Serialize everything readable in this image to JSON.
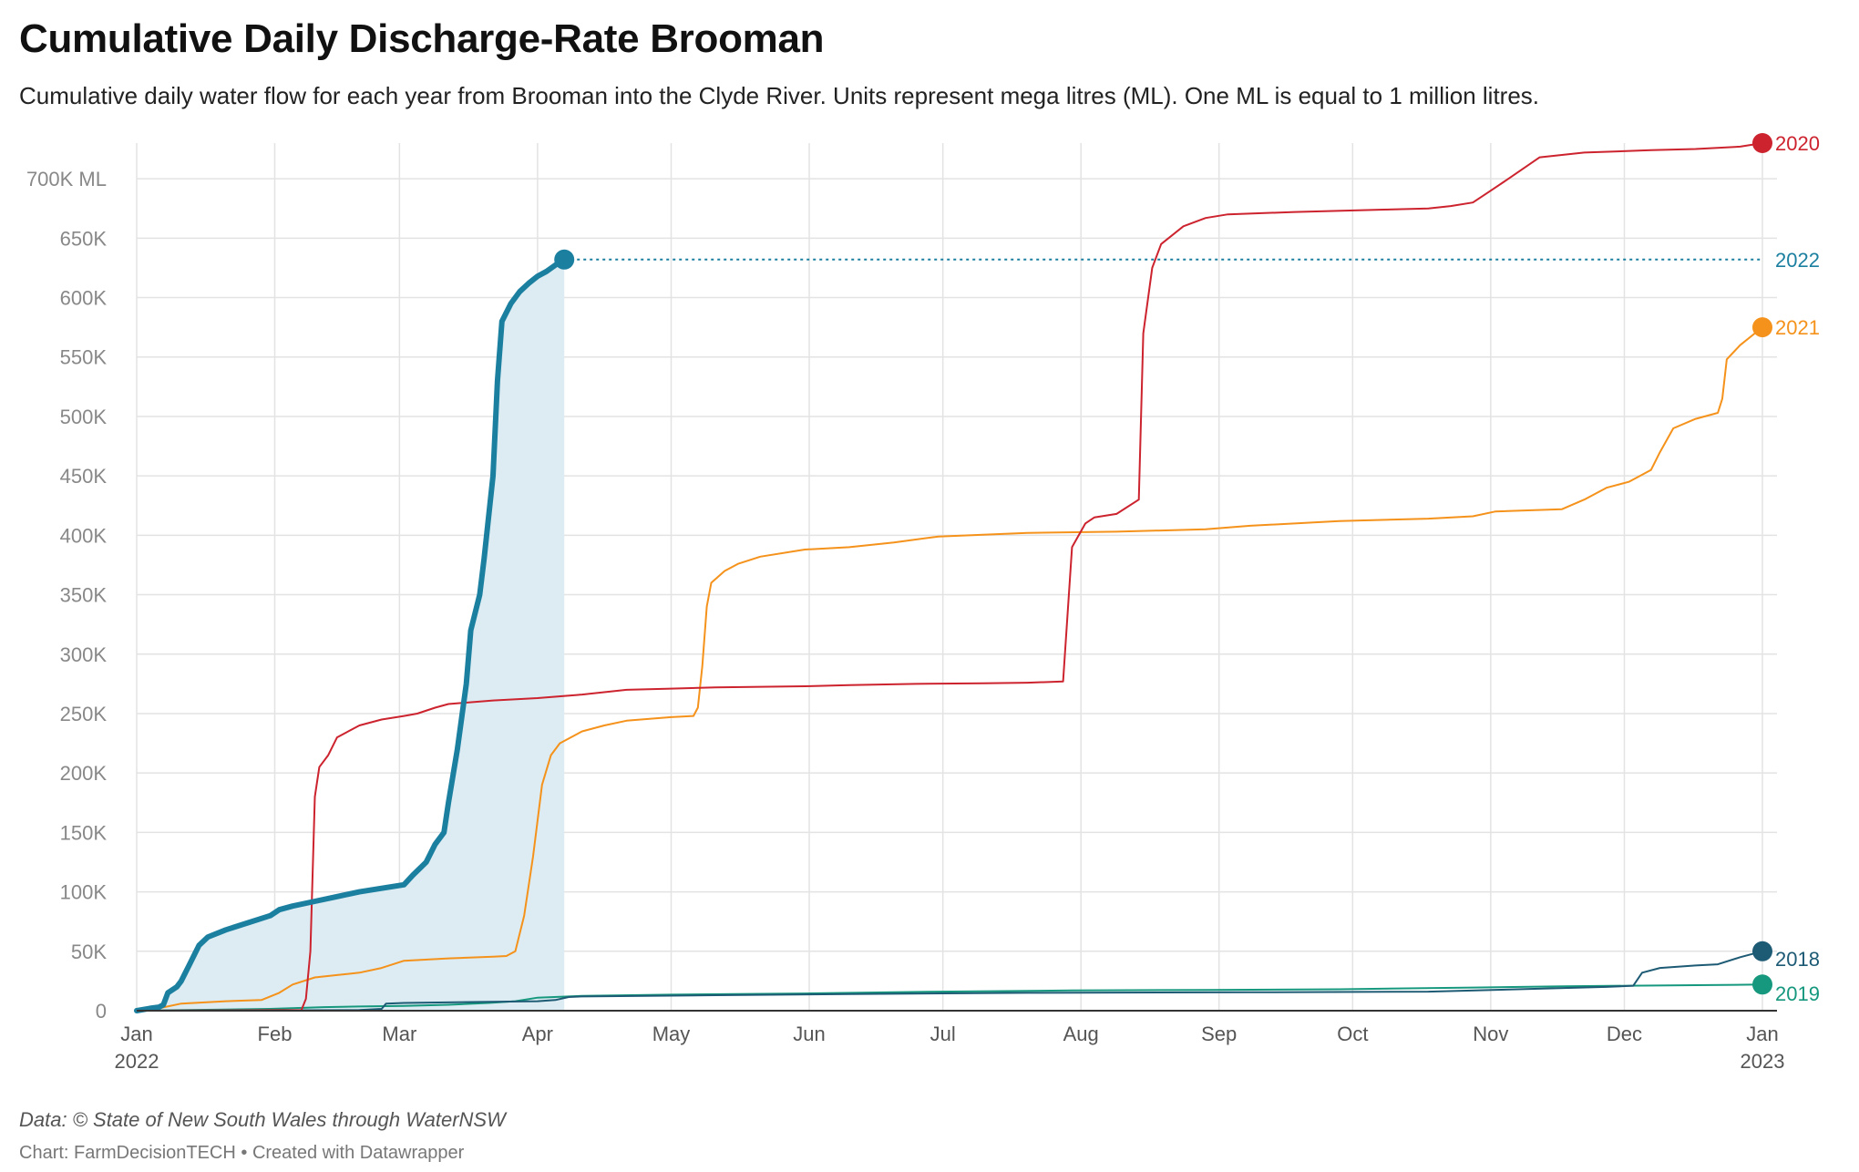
{
  "header": {
    "title": "Cumulative Daily Discharge-Rate Brooman",
    "subtitle": "Cumulative daily water flow for each year from Brooman into the Clyde River. Units represent mega litres (ML). One ML is equal to 1 million litres."
  },
  "footer": {
    "source": "Data: © State of New South Wales through WaterNSW",
    "credit": "Chart: FarmDecisionTECH • Created with Datawrapper"
  },
  "chart_data": {
    "type": "line",
    "title": "Cumulative Daily Discharge-Rate Brooman",
    "x_axis": {
      "unit": "day of year",
      "range": [
        0,
        365
      ],
      "ticks": [
        {
          "day": 0,
          "label": "Jan",
          "sublabel": "2022"
        },
        {
          "day": 31,
          "label": "Feb",
          "sublabel": ""
        },
        {
          "day": 59,
          "label": "Mar",
          "sublabel": ""
        },
        {
          "day": 90,
          "label": "Apr",
          "sublabel": ""
        },
        {
          "day": 120,
          "label": "May",
          "sublabel": ""
        },
        {
          "day": 151,
          "label": "Jun",
          "sublabel": ""
        },
        {
          "day": 181,
          "label": "Jul",
          "sublabel": ""
        },
        {
          "day": 212,
          "label": "Aug",
          "sublabel": ""
        },
        {
          "day": 243,
          "label": "Sep",
          "sublabel": ""
        },
        {
          "day": 273,
          "label": "Oct",
          "sublabel": ""
        },
        {
          "day": 304,
          "label": "Nov",
          "sublabel": ""
        },
        {
          "day": 334,
          "label": "Dec",
          "sublabel": ""
        },
        {
          "day": 365,
          "label": "Jan",
          "sublabel": "2023"
        }
      ]
    },
    "y_axis": {
      "range": [
        0,
        730000
      ],
      "ticks": [
        {
          "value": 0,
          "label": "0"
        },
        {
          "value": 50000,
          "label": "50K"
        },
        {
          "value": 100000,
          "label": "100K"
        },
        {
          "value": 150000,
          "label": "150K"
        },
        {
          "value": 200000,
          "label": "200K"
        },
        {
          "value": 250000,
          "label": "250K"
        },
        {
          "value": 300000,
          "label": "300K"
        },
        {
          "value": 350000,
          "label": "350K"
        },
        {
          "value": 400000,
          "label": "400K"
        },
        {
          "value": 450000,
          "label": "450K"
        },
        {
          "value": 500000,
          "label": "500K"
        },
        {
          "value": 550000,
          "label": "550K"
        },
        {
          "value": 600000,
          "label": "600K"
        },
        {
          "value": 650000,
          "label": "650K"
        },
        {
          "value": 700000,
          "label": "700K ML"
        }
      ]
    },
    "grid": true,
    "series": [
      {
        "name": "2019",
        "color": "#16987e",
        "width": 2,
        "end_label": "2019",
        "end_dot": true,
        "points": [
          [
            0,
            0
          ],
          [
            30,
            1500
          ],
          [
            42,
            3000
          ],
          [
            50,
            3500
          ],
          [
            60,
            4000
          ],
          [
            70,
            5000
          ],
          [
            79,
            6500
          ],
          [
            85,
            8000
          ],
          [
            90,
            11000
          ],
          [
            100,
            12500
          ],
          [
            120,
            13500
          ],
          [
            150,
            14500
          ],
          [
            180,
            16000
          ],
          [
            210,
            17000
          ],
          [
            240,
            17500
          ],
          [
            270,
            18000
          ],
          [
            300,
            19500
          ],
          [
            320,
            20500
          ],
          [
            335,
            21000
          ],
          [
            350,
            21500
          ],
          [
            365,
            22000
          ]
        ]
      },
      {
        "name": "2018",
        "color": "#1d5a74",
        "width": 2,
        "end_label": "2018",
        "end_dot": true,
        "points": [
          [
            0,
            0
          ],
          [
            50,
            500
          ],
          [
            55,
            1500
          ],
          [
            56,
            6000
          ],
          [
            60,
            6500
          ],
          [
            90,
            8000
          ],
          [
            94,
            9000
          ],
          [
            97,
            11500
          ],
          [
            100,
            12000
          ],
          [
            130,
            13000
          ],
          [
            160,
            14000
          ],
          [
            200,
            15000
          ],
          [
            250,
            15500
          ],
          [
            290,
            16000
          ],
          [
            310,
            18000
          ],
          [
            330,
            20000
          ],
          [
            336,
            21000
          ],
          [
            338,
            32000
          ],
          [
            342,
            36000
          ],
          [
            350,
            38000
          ],
          [
            355,
            39000
          ],
          [
            360,
            45000
          ],
          [
            365,
            50000
          ]
        ]
      },
      {
        "name": "2021",
        "color": "#f5921b",
        "width": 2,
        "end_label": "2021",
        "end_dot": true,
        "points": [
          [
            0,
            0
          ],
          [
            5,
            2000
          ],
          [
            10,
            6000
          ],
          [
            20,
            8000
          ],
          [
            28,
            9000
          ],
          [
            32,
            15000
          ],
          [
            35,
            22000
          ],
          [
            40,
            28000
          ],
          [
            45,
            30000
          ],
          [
            50,
            32000
          ],
          [
            55,
            36000
          ],
          [
            60,
            42000
          ],
          [
            70,
            44000
          ],
          [
            80,
            45500
          ],
          [
            83,
            46000
          ],
          [
            85,
            50000
          ],
          [
            87,
            80000
          ],
          [
            89,
            130000
          ],
          [
            91,
            190000
          ],
          [
            93,
            215000
          ],
          [
            95,
            225000
          ],
          [
            100,
            235000
          ],
          [
            105,
            240000
          ],
          [
            110,
            244000
          ],
          [
            120,
            247000
          ],
          [
            125,
            248000
          ],
          [
            126,
            255000
          ],
          [
            127,
            290000
          ],
          [
            128,
            340000
          ],
          [
            129,
            360000
          ],
          [
            132,
            370000
          ],
          [
            135,
            376000
          ],
          [
            140,
            382000
          ],
          [
            150,
            388000
          ],
          [
            160,
            390000
          ],
          [
            170,
            394000
          ],
          [
            180,
            399000
          ],
          [
            200,
            402000
          ],
          [
            220,
            403000
          ],
          [
            240,
            405000
          ],
          [
            250,
            408000
          ],
          [
            270,
            412000
          ],
          [
            290,
            414000
          ],
          [
            300,
            416000
          ],
          [
            305,
            420000
          ],
          [
            320,
            422000
          ],
          [
            325,
            430000
          ],
          [
            330,
            440000
          ],
          [
            335,
            445000
          ],
          [
            340,
            455000
          ],
          [
            342,
            470000
          ],
          [
            345,
            490000
          ],
          [
            350,
            498000
          ],
          [
            355,
            503000
          ],
          [
            356,
            515000
          ],
          [
            357,
            548000
          ],
          [
            360,
            560000
          ],
          [
            365,
            575000
          ]
        ]
      },
      {
        "name": "2020",
        "color": "#cc232e",
        "width": 2,
        "end_label": "2020",
        "end_dot": true,
        "points": [
          [
            0,
            0
          ],
          [
            37,
            500
          ],
          [
            38,
            10000
          ],
          [
            39,
            50000
          ],
          [
            40,
            180000
          ],
          [
            41,
            205000
          ],
          [
            43,
            215000
          ],
          [
            45,
            230000
          ],
          [
            50,
            240000
          ],
          [
            55,
            245000
          ],
          [
            60,
            248000
          ],
          [
            63,
            250000
          ],
          [
            67,
            255000
          ],
          [
            70,
            258000
          ],
          [
            80,
            261000
          ],
          [
            90,
            263000
          ],
          [
            100,
            266000
          ],
          [
            110,
            270000
          ],
          [
            120,
            271000
          ],
          [
            130,
            272000
          ],
          [
            140,
            272500
          ],
          [
            150,
            273000
          ],
          [
            160,
            274000
          ],
          [
            175,
            275000
          ],
          [
            190,
            275500
          ],
          [
            200,
            276000
          ],
          [
            208,
            277000
          ],
          [
            210,
            390000
          ],
          [
            213,
            410000
          ],
          [
            215,
            415000
          ],
          [
            220,
            418000
          ],
          [
            225,
            430000
          ],
          [
            226,
            570000
          ],
          [
            228,
            625000
          ],
          [
            230,
            645000
          ],
          [
            235,
            660000
          ],
          [
            240,
            667000
          ],
          [
            245,
            670000
          ],
          [
            260,
            672000
          ],
          [
            280,
            674000
          ],
          [
            290,
            675000
          ],
          [
            295,
            677000
          ],
          [
            300,
            680000
          ],
          [
            304,
            690000
          ],
          [
            308,
            700000
          ],
          [
            315,
            718000
          ],
          [
            325,
            722000
          ],
          [
            340,
            724000
          ],
          [
            350,
            725000
          ],
          [
            360,
            727000
          ],
          [
            365,
            730000
          ]
        ]
      },
      {
        "name": "2022",
        "color": "#1b7fa0",
        "width": 6,
        "end_label": "2022",
        "end_dot": true,
        "fill": "#dcecf2",
        "dotted_extension": true,
        "points": [
          [
            0,
            0
          ],
          [
            3,
            2000
          ],
          [
            5,
            3000
          ],
          [
            6,
            5000
          ],
          [
            7,
            15000
          ],
          [
            9,
            20000
          ],
          [
            10,
            25000
          ],
          [
            12,
            40000
          ],
          [
            14,
            55000
          ],
          [
            16,
            62000
          ],
          [
            20,
            68000
          ],
          [
            25,
            74000
          ],
          [
            30,
            80000
          ],
          [
            32,
            85000
          ],
          [
            35,
            88000
          ],
          [
            40,
            92000
          ],
          [
            45,
            96000
          ],
          [
            50,
            100000
          ],
          [
            55,
            103000
          ],
          [
            60,
            106000
          ],
          [
            62,
            114000
          ],
          [
            65,
            125000
          ],
          [
            67,
            140000
          ],
          [
            69,
            150000
          ],
          [
            70,
            175000
          ],
          [
            72,
            220000
          ],
          [
            74,
            275000
          ],
          [
            75,
            320000
          ],
          [
            77,
            350000
          ],
          [
            78,
            380000
          ],
          [
            80,
            450000
          ],
          [
            81,
            530000
          ],
          [
            82,
            580000
          ],
          [
            84,
            595000
          ],
          [
            86,
            605000
          ],
          [
            88,
            612000
          ],
          [
            90,
            618000
          ],
          [
            92,
            622000
          ],
          [
            95,
            630000
          ],
          [
            96,
            632000
          ]
        ]
      }
    ]
  }
}
